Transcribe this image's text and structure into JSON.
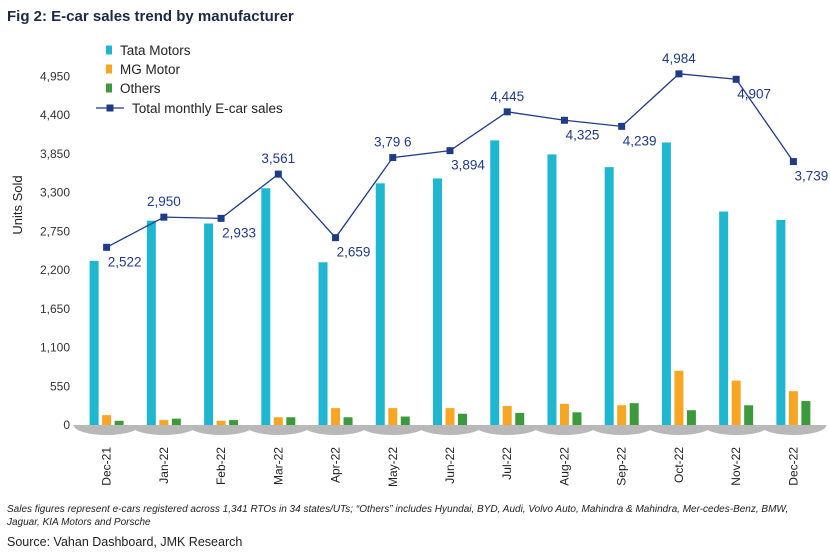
{
  "figure": {
    "title": "Fig 2: E-car sales trend by manufacturer",
    "footnote": "Sales figures represent e-cars registered across 1,341 RTOs in 34 states/UTs; “Others” includes Hyundai, BYD, Audi, Volvo Auto, Mahindra & Mahindra, Mer-cedes-Benz, BMW, Jaguar, KIA Motors and Porsche",
    "source": "Source: Vahan Dashboard, JMK Research"
  },
  "chart_data": {
    "type": "bar",
    "title": "Fig 2: E-car sales trend by manufacturer",
    "xlabel": "",
    "ylabel": "Units Sold",
    "ylim": [
      0,
      5500
    ],
    "yticks": [
      0,
      550,
      1100,
      1650,
      2200,
      2750,
      3300,
      3850,
      4400,
      4950
    ],
    "ytick_labels": [
      "0",
      "550",
      "1,100",
      "1,650",
      "2,200",
      "2,750",
      "3,300",
      "3,850",
      "4,400",
      "4,950"
    ],
    "grid": false,
    "legend_position": "top-left",
    "categories": [
      "Dec-21",
      "Jan-22",
      "Feb-22",
      "Mar-22",
      "Apr-22",
      "May-22",
      "Jun-22",
      "Jul-22",
      "Aug-22",
      "Sep-22",
      "Oct-22",
      "Nov-22",
      "Dec-22"
    ],
    "series": [
      {
        "name": "Tata Motors",
        "kind": "bar",
        "color": "#1fb7cf",
        "values": [
          2330,
          2900,
          2860,
          3360,
          2310,
          3430,
          3500,
          4040,
          3840,
          3660,
          4010,
          3030,
          2910
        ]
      },
      {
        "name": "MG Motor",
        "kind": "bar",
        "color": "#f6a623",
        "values": [
          140,
          70,
          60,
          110,
          240,
          240,
          240,
          270,
          300,
          280,
          770,
          630,
          480
        ]
      },
      {
        "name": "Others",
        "kind": "bar",
        "color": "#3c9a3c",
        "values": [
          60,
          90,
          70,
          110,
          110,
          120,
          160,
          170,
          180,
          310,
          210,
          280,
          340
        ]
      },
      {
        "name": "Total monthly E-car sales",
        "kind": "line",
        "color": "#1f3b86",
        "values": [
          2522,
          2950,
          2933,
          3561,
          2659,
          3796,
          3894,
          4445,
          4325,
          4239,
          4984,
          4907,
          3739
        ],
        "labels": [
          "2,522",
          "2,950",
          "2,933",
          "3,561",
          "2,659",
          "3,79 6",
          "3,894",
          "4,445",
          "4,325",
          "4,239",
          "4,984",
          "4,907",
          "3,739"
        ]
      }
    ]
  }
}
